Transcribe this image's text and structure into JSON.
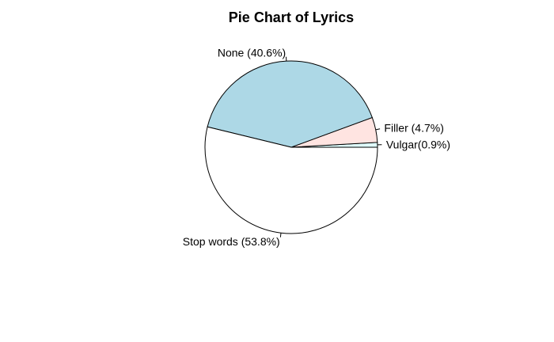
{
  "chart_data": {
    "type": "pie",
    "title": "Pie Chart of Lyrics",
    "slices": [
      {
        "label": "Vulgar(0.9%)",
        "value": 0.9,
        "color": "#e0ffff"
      },
      {
        "label": "Filler (4.7%)",
        "value": 4.7,
        "color": "#ffe4e1"
      },
      {
        "label": "None (40.6%)",
        "value": 40.6,
        "color": "#add8e6"
      },
      {
        "label": "Stop words (53.8%)",
        "value": 53.8,
        "color": "#ffffff"
      }
    ],
    "start_angle_deg": 0,
    "direction": "counterclockwise",
    "border_color": "#000000"
  }
}
